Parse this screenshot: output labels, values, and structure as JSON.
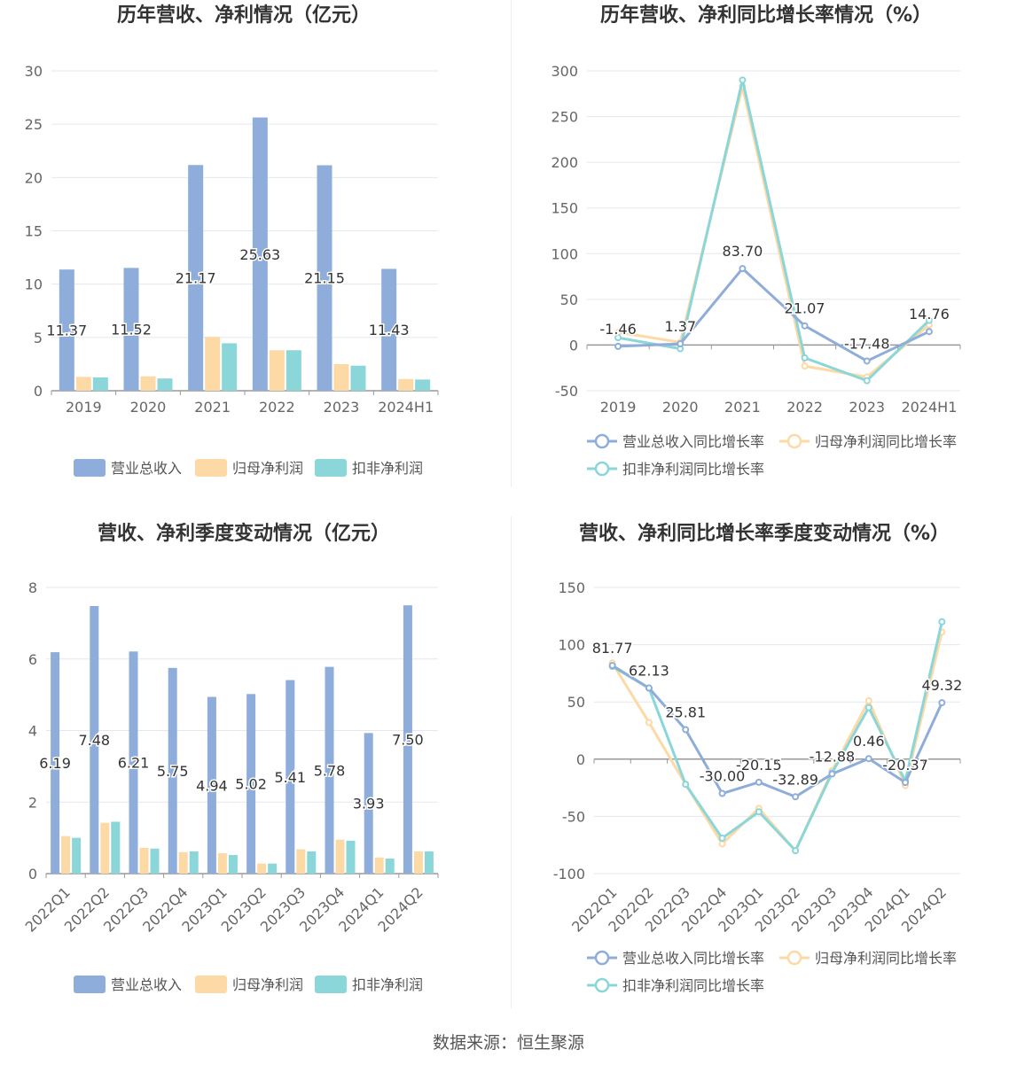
{
  "footer": {
    "source": "数据来源：恒生聚源"
  },
  "colors": {
    "revenue": "#8eadda",
    "net_profit": "#fdd9a6",
    "deducted_profit": "#8ad6d8",
    "grid": "#e4e7ef",
    "axis": "#999999"
  },
  "chart_data": [
    {
      "id": "annual-bar",
      "type": "bar",
      "title": "历年营收、净利情况（亿元）",
      "categories": [
        "2019",
        "2020",
        "2021",
        "2022",
        "2023",
        "2024H1"
      ],
      "ylim": [
        0,
        30
      ],
      "yticks": [
        0,
        5,
        10,
        15,
        20,
        25,
        30
      ],
      "grid": true,
      "legend_position": "bottom",
      "series": [
        {
          "name": "营业总收入",
          "values": [
            11.37,
            11.52,
            21.17,
            25.63,
            21.15,
            11.43
          ],
          "labels": [
            "11.37",
            "11.52",
            "21.17",
            "25.63",
            "21.15",
            "11.43"
          ]
        },
        {
          "name": "归母净利润",
          "values": [
            1.3,
            1.35,
            5.05,
            3.8,
            2.5,
            1.1
          ]
        },
        {
          "name": "扣非净利润",
          "values": [
            1.25,
            1.15,
            4.45,
            3.8,
            2.35,
            1.05
          ]
        }
      ]
    },
    {
      "id": "annual-line",
      "type": "line",
      "title": "历年营收、净利同比增长率情况（%）",
      "categories": [
        "2019",
        "2020",
        "2021",
        "2022",
        "2023",
        "2024H1"
      ],
      "ylim": [
        -50,
        300
      ],
      "yticks": [
        -50,
        0,
        50,
        100,
        150,
        200,
        250,
        300
      ],
      "grid": true,
      "legend_position": "bottom",
      "series": [
        {
          "name": "营业总收入同比增长率",
          "values": [
            -1.46,
            1.37,
            83.7,
            21.07,
            -17.48,
            14.76
          ],
          "labels": [
            "-1.46",
            "1.37",
            "83.70",
            "21.07",
            "-17.48",
            "14.76"
          ]
        },
        {
          "name": "归母净利润同比增长率",
          "values": [
            14,
            3,
            283,
            -23,
            -35,
            22
          ]
        },
        {
          "name": "扣非净利润同比增长率",
          "values": [
            8,
            -4,
            290,
            -14,
            -39,
            27
          ]
        }
      ]
    },
    {
      "id": "quarterly-bar",
      "type": "bar",
      "title": "营收、净利季度变动情况（亿元）",
      "categories": [
        "2022Q1",
        "2022Q2",
        "2022Q3",
        "2022Q4",
        "2023Q1",
        "2023Q2",
        "2023Q3",
        "2023Q4",
        "2024Q1",
        "2024Q2"
      ],
      "ylim": [
        0,
        8
      ],
      "yticks": [
        0,
        2,
        4,
        6,
        8
      ],
      "grid": true,
      "legend_position": "bottom",
      "series": [
        {
          "name": "营业总收入",
          "values": [
            6.19,
            7.48,
            6.21,
            5.75,
            4.94,
            5.02,
            5.41,
            5.78,
            3.93,
            7.5
          ],
          "labels": [
            "6.19",
            "7.48",
            "6.21",
            "5.75",
            "4.94",
            "5.02",
            "5.41",
            "5.78",
            "3.93",
            "7.50"
          ]
        },
        {
          "name": "归母净利润",
          "values": [
            1.05,
            1.42,
            0.72,
            0.6,
            0.57,
            0.28,
            0.68,
            0.95,
            0.45,
            0.62
          ]
        },
        {
          "name": "扣非净利润",
          "values": [
            1.0,
            1.45,
            0.7,
            0.62,
            0.52,
            0.28,
            0.62,
            0.92,
            0.42,
            0.62
          ]
        }
      ]
    },
    {
      "id": "quarterly-line",
      "type": "line",
      "title": "营收、净利同比增长率季度变动情况（%）",
      "categories": [
        "2022Q1",
        "2022Q2",
        "2022Q3",
        "2022Q4",
        "2023Q1",
        "2023Q2",
        "2023Q3",
        "2023Q4",
        "2024Q1",
        "2024Q2"
      ],
      "ylim": [
        -100,
        150
      ],
      "yticks": [
        -100,
        -50,
        0,
        50,
        100,
        150
      ],
      "grid": true,
      "legend_position": "bottom",
      "series": [
        {
          "name": "营业总收入同比增长率",
          "values": [
            81.77,
            62.13,
            25.81,
            -30.0,
            -20.15,
            -32.89,
            -12.88,
            0.46,
            -20.37,
            49.32
          ],
          "labels": [
            "81.77",
            "62.13",
            "25.81",
            "-30.00",
            "-20.15",
            "-32.89",
            "-12.88",
            "0.46",
            "-20.37",
            "49.32"
          ]
        },
        {
          "name": "归母净利润同比增长率",
          "values": [
            84,
            32,
            -22,
            -74,
            -43,
            -80,
            -10,
            51,
            -23,
            111
          ]
        },
        {
          "name": "扣非净利润同比增长率",
          "values": [
            81,
            62,
            -22,
            -69,
            -46,
            -80,
            -12,
            45,
            -19,
            120
          ]
        }
      ]
    }
  ]
}
